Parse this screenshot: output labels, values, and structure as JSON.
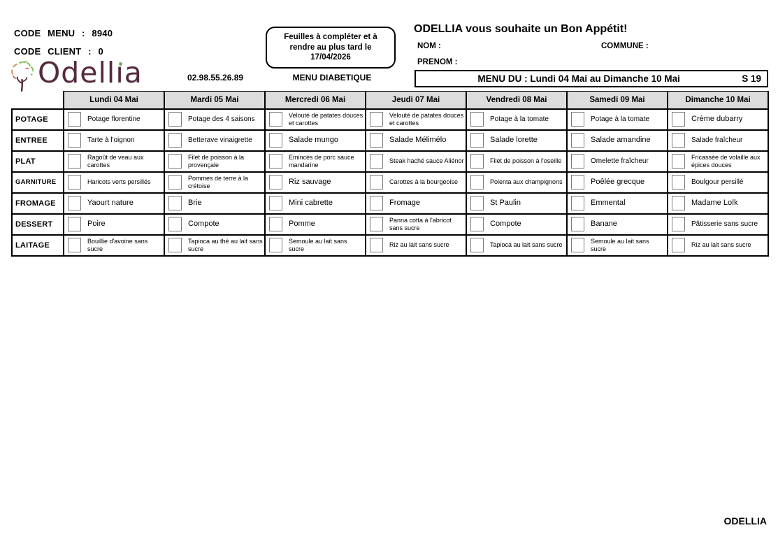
{
  "page": {
    "code_menu_label": "CODE MENU :",
    "code_menu_value": "8940",
    "code_client_label": "CODE CLIENT :",
    "code_client_value": "0",
    "logo_text": "Odellia",
    "phone": "02.98.55.26.89",
    "menu_type": "MENU DIABETIQUE",
    "notice_line1": "Feuilles à compléter et à",
    "notice_line2": "rendre au plus tard le",
    "notice_line3": "17/04/2026",
    "greeting": "ODELLIA vous souhaite un Bon Appétit!",
    "nom_label": "NOM :",
    "prenom_label": "PRENOM :",
    "commune_label": "COMMUNE :",
    "menu_period": "MENU DU : Lundi 04 Mai au Dimanche 10 Mai",
    "week_badge": "S 19",
    "footer": "ODELLIA"
  },
  "colors": {
    "logo": "#552a3e",
    "logo_dot": "#6fae4e",
    "header_bg": "#dcdcdc",
    "border": "#000000"
  },
  "menu_table": {
    "days": [
      "Lundi 04 Mai",
      "Mardi 05 Mai",
      "Mercredi 06 Mai",
      "Jeudi 07 Mai",
      "Vendredi 08 Mai",
      "Samedi 09 Mai",
      "Dimanche 10 Mai"
    ],
    "courses": [
      {
        "name": "POTAGE",
        "items": [
          "Potage florentine",
          "Potage des 4 saisons",
          "Velouté de patates douces et carottes",
          "Velouté de patates douces et carottes",
          "Potage à la tomate",
          "Potage à la tomate",
          "Crème dubarry"
        ]
      },
      {
        "name": "ENTREE",
        "items": [
          "Tarte à l'oignon",
          "Betterave vinaigrette",
          "Salade mungo",
          "Salade Mélimélo",
          "Salade lorette",
          "Salade amandine",
          "Salade fraîcheur"
        ]
      },
      {
        "name": "PLAT",
        "items": [
          "Ragoût de veau aux carottes",
          "Filet de poisson à la provençale",
          "Emincés de porc sauce mandarine",
          "Steak haché sauce Aliénor",
          "Filet de poisson à l'oseille",
          "Omelette fraîcheur",
          "Fricassée de volaille aux épices douces"
        ]
      },
      {
        "name": "GARNITURE",
        "items": [
          "Haricots verts persillés",
          "Pommes de terre à la crétoise",
          "Riz sauvage",
          "Carottes à la bourgeoise",
          "Polenta aux champignons",
          "Poêlée grecque",
          "Boulgour persillé"
        ]
      },
      {
        "name": "FROMAGE",
        "items": [
          "Yaourt nature",
          "Brie",
          "Mini cabrette",
          "Fromage",
          "St Paulin",
          "Emmental",
          "Madame Loïk"
        ]
      },
      {
        "name": "DESSERT",
        "items": [
          "Poire",
          "Compote",
          "Pomme",
          "Panna cotta à l'abricot sans sucre",
          "Compote",
          "Banane",
          "Pâtisserie sans sucre"
        ]
      },
      {
        "name": "LAITAGE",
        "items": [
          "Bouillie d'avoine sans sucre",
          "Tapioca au thé au lait sans sucre",
          "Semoule au lait sans sucre",
          "Riz au lait sans sucre",
          "Tapioca au lait sans sucre",
          "Semoule au lait sans sucre",
          "Riz au lait sans sucre"
        ]
      }
    ]
  }
}
